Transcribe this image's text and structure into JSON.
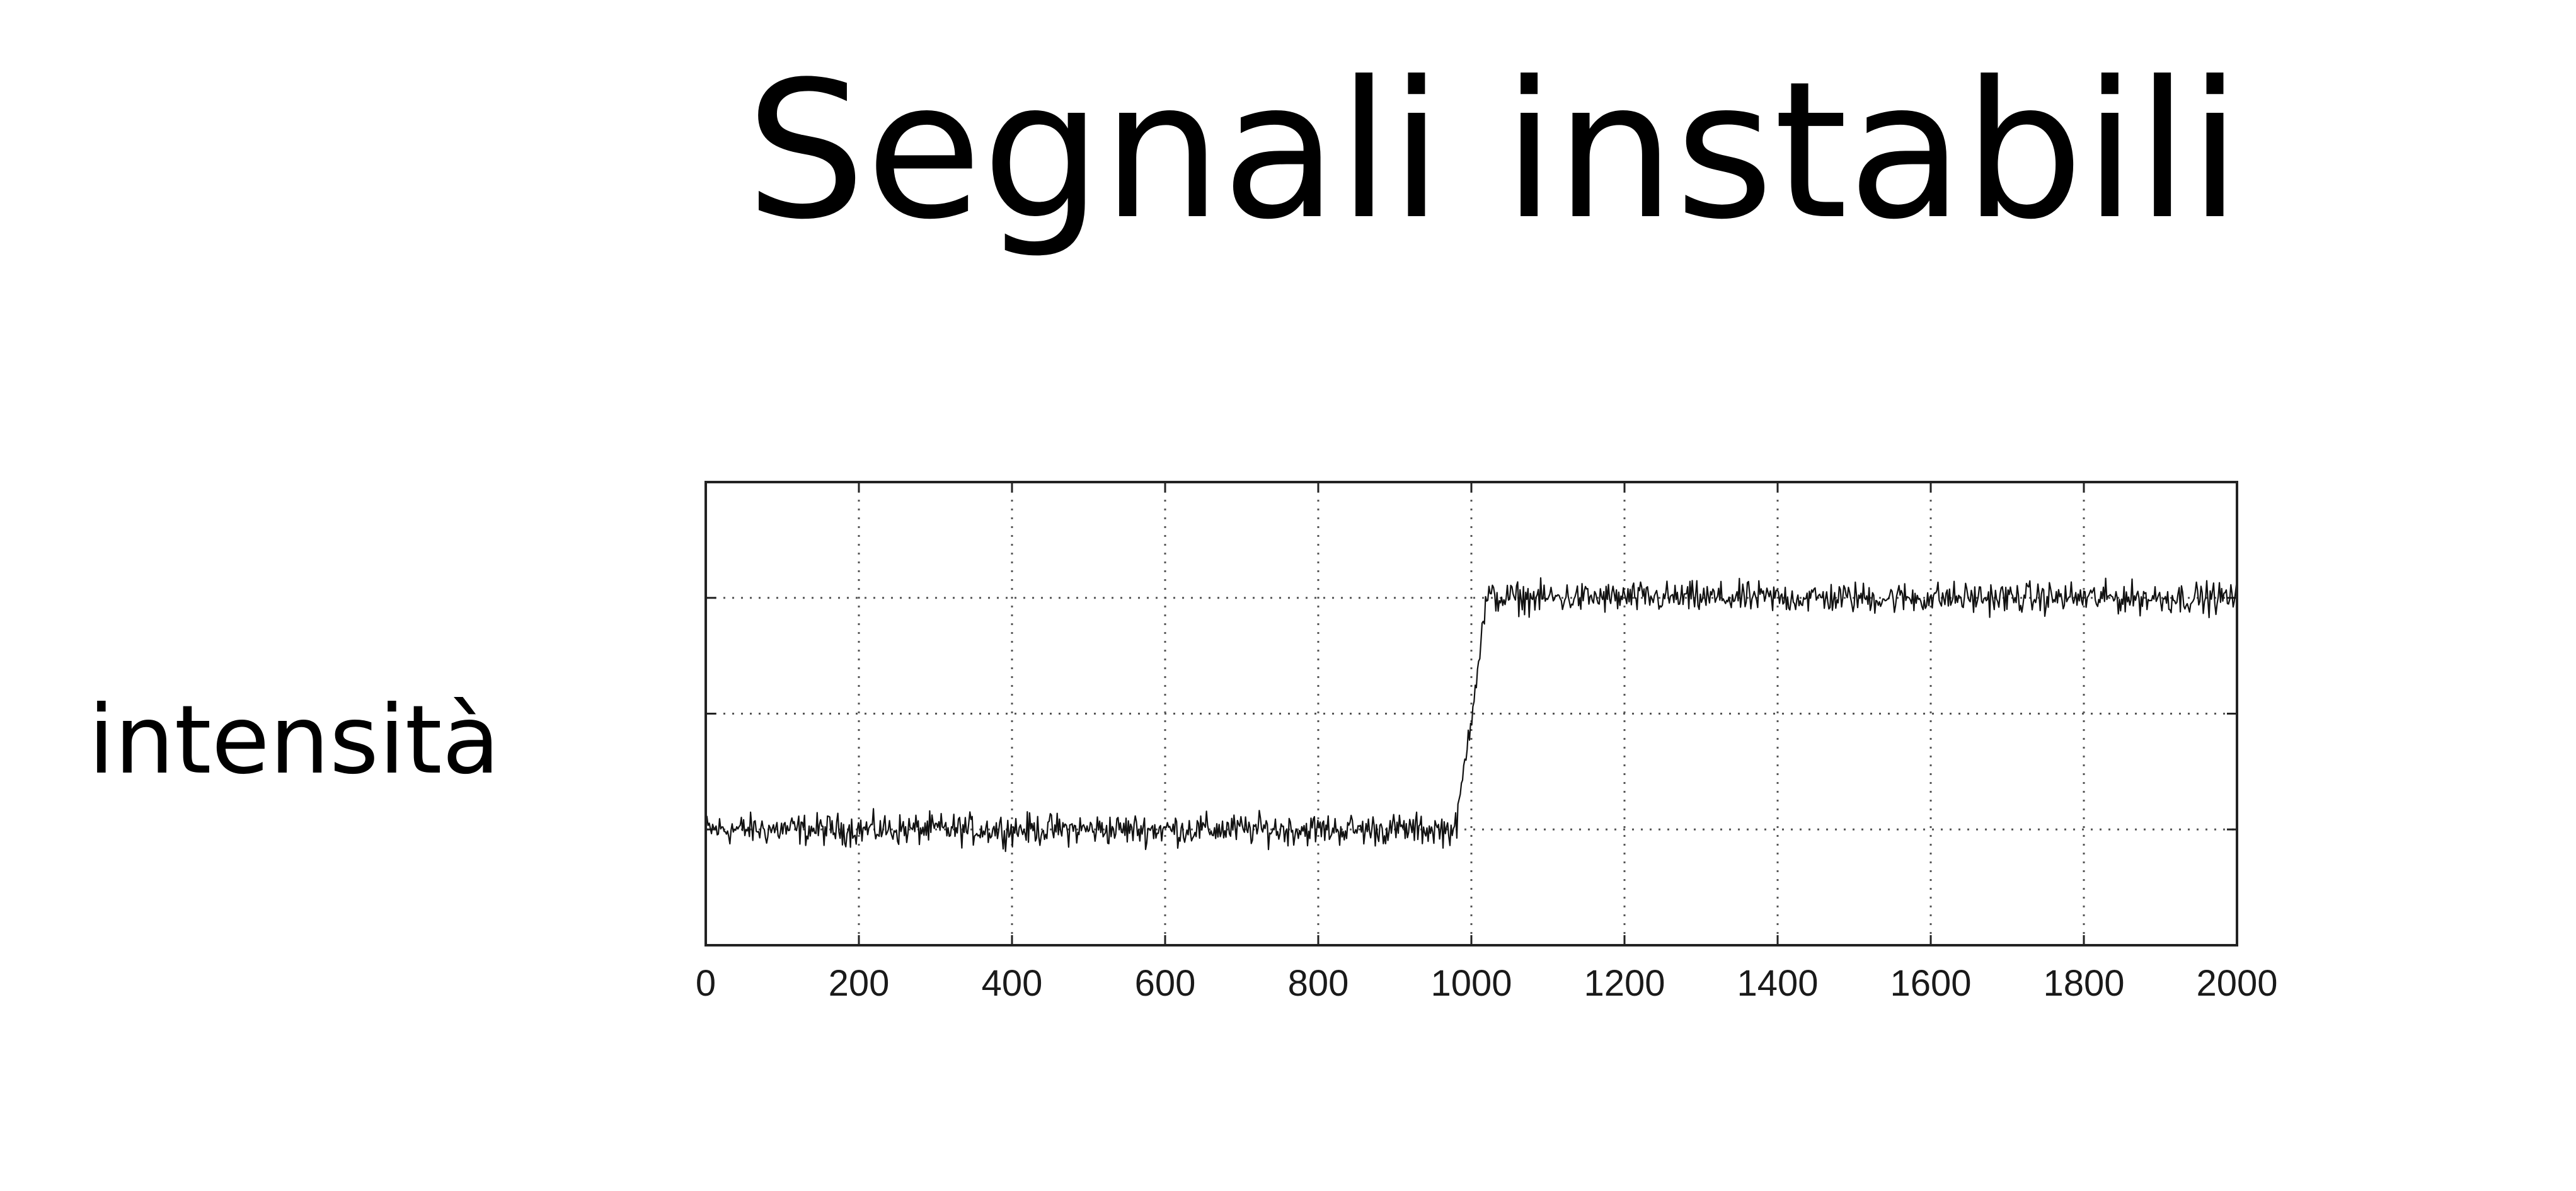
{
  "slide": {
    "title": "Segnali instabili",
    "side_label": "intensità"
  },
  "chart_data": {
    "type": "line",
    "title": "",
    "xlabel": "",
    "ylabel": "",
    "xlim": [
      0,
      2000
    ],
    "ylim": [
      0,
      2
    ],
    "x_ticks": [
      0,
      200,
      400,
      600,
      800,
      1000,
      1200,
      1400,
      1600,
      1800,
      2000
    ],
    "x_tick_labels": [
      "0",
      "200",
      "400",
      "600",
      "800",
      "1000",
      "1200",
      "1400",
      "1600",
      "1800",
      "2000"
    ],
    "y_gridlines": [
      0.5,
      1.0,
      1.5
    ],
    "grid": true,
    "grid_style": "dotted",
    "y_tick_labels_shown": false,
    "legend": "none",
    "line_color": "#111111",
    "series": [
      {
        "x": [
          0,
          100,
          200,
          300,
          400,
          500,
          600,
          700,
          800,
          900,
          980,
          1020,
          1100,
          1200,
          1300,
          1400,
          1500,
          1600,
          1700,
          1800,
          1900,
          2000
        ],
        "y": [
          0.5,
          0.5,
          0.5,
          0.5,
          0.5,
          0.5,
          0.5,
          0.5,
          0.5,
          0.5,
          0.5,
          1.5,
          1.5,
          1.5,
          1.5,
          1.5,
          1.5,
          1.5,
          1.5,
          1.5,
          1.5,
          1.5
        ],
        "noise_amplitude": 0.05
      }
    ]
  }
}
